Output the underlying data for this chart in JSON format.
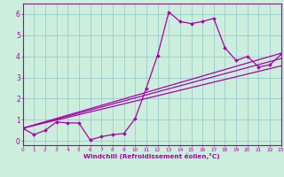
{
  "xlabel": "Windchill (Refroidissement éolien,°C)",
  "bg_color": "#cceedd",
  "line_color": "#aa00aa",
  "grid_color": "#99cccc",
  "xlim": [
    0,
    23
  ],
  "ylim": [
    -0.2,
    6.5
  ],
  "xticks": [
    0,
    1,
    2,
    3,
    4,
    5,
    6,
    7,
    8,
    9,
    10,
    11,
    12,
    13,
    14,
    15,
    16,
    17,
    18,
    19,
    20,
    21,
    22,
    23
  ],
  "yticks": [
    0,
    1,
    2,
    3,
    4,
    5,
    6
  ],
  "main_x": [
    0,
    1,
    2,
    3,
    4,
    5,
    6,
    7,
    8,
    9,
    10,
    11,
    12,
    13,
    14,
    15,
    16,
    17,
    18,
    19,
    20,
    21,
    22,
    23
  ],
  "main_y": [
    0.6,
    0.3,
    0.5,
    0.9,
    0.85,
    0.85,
    0.05,
    0.2,
    0.3,
    0.35,
    1.05,
    2.5,
    4.05,
    6.1,
    5.65,
    5.55,
    5.65,
    5.8,
    4.4,
    3.8,
    4.0,
    3.5,
    3.6,
    4.1
  ],
  "trend1_x": [
    0,
    23
  ],
  "trend1_y": [
    0.6,
    3.55
  ],
  "trend2_x": [
    0,
    23
  ],
  "trend2_y": [
    0.6,
    3.9
  ],
  "trend3_x": [
    0,
    23
  ],
  "trend3_y": [
    0.6,
    4.15
  ]
}
